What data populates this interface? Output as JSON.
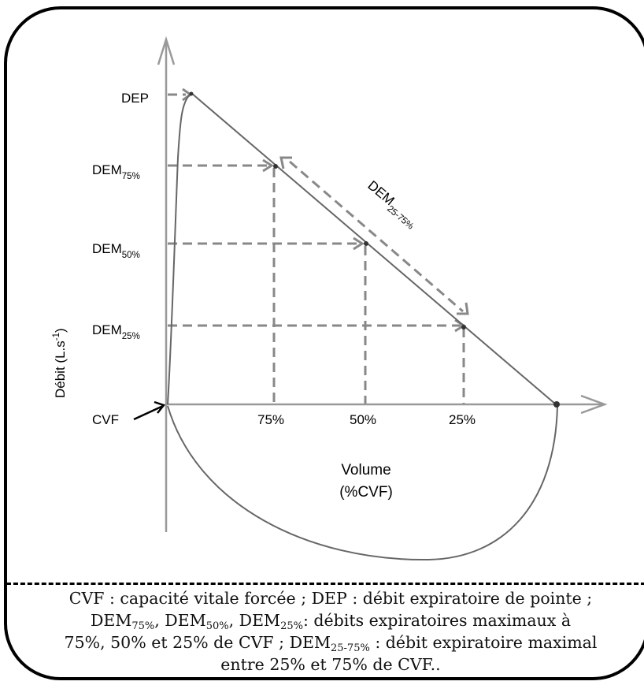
{
  "diagram": {
    "y_axis_label": "Débit (L.s",
    "y_axis_label_sup": "-1",
    "y_axis_label_close": ")",
    "levels": {
      "dep": "DEP",
      "dem75": {
        "main": "DEM",
        "sub": "75%"
      },
      "dem50": {
        "main": "DEM",
        "sub": "50%"
      },
      "dem25": {
        "main": "DEM",
        "sub": "25%"
      },
      "cvf": "CVF"
    },
    "x_ticks": [
      "75%",
      "50%",
      "25%"
    ],
    "slope_label": {
      "main": "DEM",
      "sub": "25-75%"
    },
    "x_axis_label_1": "Volume",
    "x_axis_label_2": "(%CVF)"
  },
  "caption": {
    "line1": "CVF : capacité vitale forcée ; DEP : débit expiratoire de pointe ;",
    "line2_dem": "DEM",
    "line2_s1": "75%",
    "line2_s2": "50%",
    "line2_s3": "25%",
    "line2_comma": ", ",
    "line2_rest": ": débits expiratoires maximaux à",
    "line3_a": "75%, 50% et 25% de CVF ; DEM",
    "line3_sub": "25-75%",
    "line3_b": " : débit expiratoire maximal",
    "line4": "entre 25% et 75% de CVF.."
  }
}
